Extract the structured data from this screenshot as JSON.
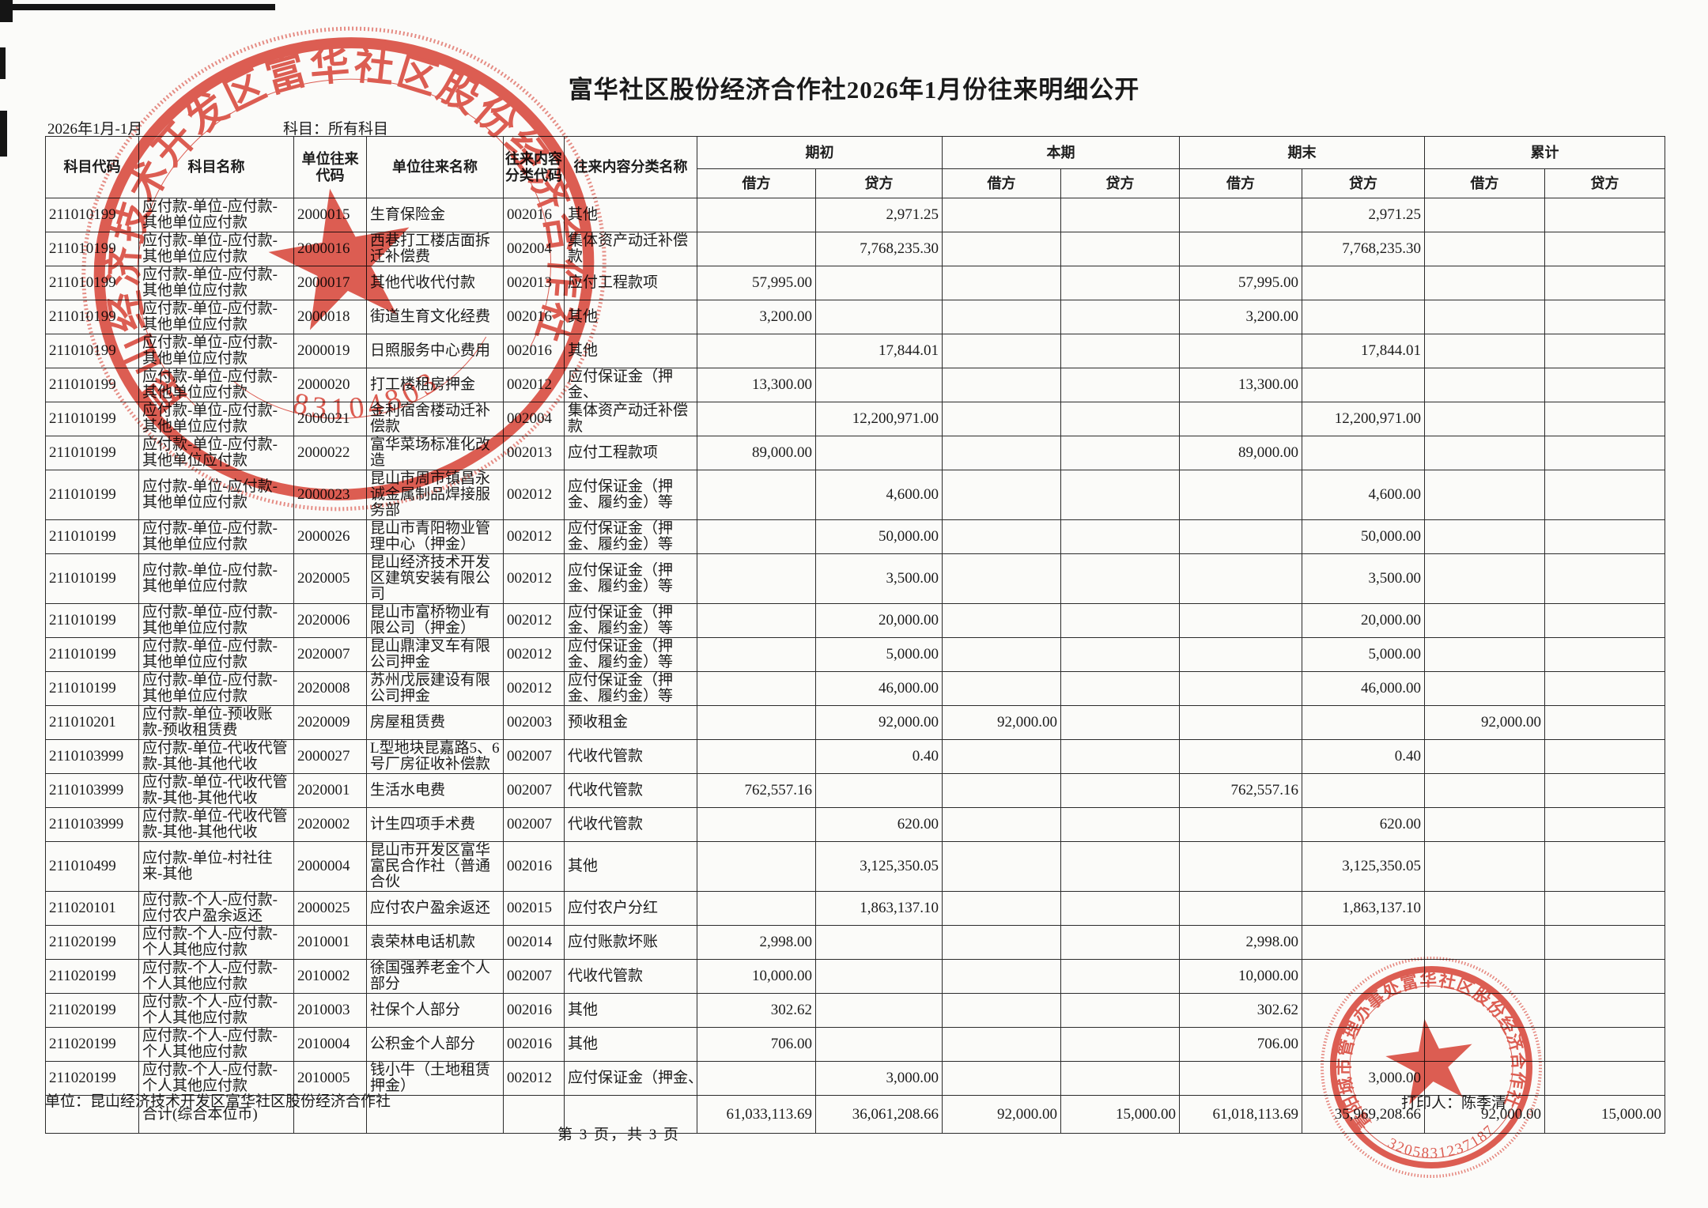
{
  "title": "富华社区股份经济合作社2026年1月份往来明细公开",
  "meta": {
    "period": "2026年1月-1月",
    "subject_filter": "科目：所有科目"
  },
  "table": {
    "headers": {
      "subject_code": "科目代码",
      "subject_name": "科目名称",
      "unit_code": "单位往来代码",
      "unit_name": "单位往来名称",
      "class_code": "往来内容分类代码",
      "class_name": "往来内容分类名称",
      "beginning": "期初",
      "current": "本期",
      "ending": "期末",
      "cumulative": "累计",
      "debit": "借方",
      "credit": "贷方"
    },
    "rows": [
      [
        "211010199",
        "应付款-单位-应付款-其他单位应付款",
        "2000015",
        "生育保险金",
        "002016",
        "其他",
        "",
        "2,971.25",
        "",
        "",
        "",
        "2,971.25",
        "",
        ""
      ],
      [
        "211010199",
        "应付款-单位-应付款-其他单位应付款",
        "2000016",
        "西巷打工楼店面拆迁补偿费",
        "002004",
        "集体资产动迁补偿款",
        "",
        "7,768,235.30",
        "",
        "",
        "",
        "7,768,235.30",
        "",
        ""
      ],
      [
        "211010199",
        "应付款-单位-应付款-其他单位应付款",
        "2000017",
        "其他代收代付款",
        "002013",
        "应付工程款项",
        "57,995.00",
        "",
        "",
        "",
        "57,995.00",
        "",
        "",
        ""
      ],
      [
        "211010199",
        "应付款-单位-应付款-其他单位应付款",
        "2000018",
        "街道生育文化经费",
        "002016",
        "其他",
        "3,200.00",
        "",
        "",
        "",
        "3,200.00",
        "",
        "",
        ""
      ],
      [
        "211010199",
        "应付款-单位-应付款-其他单位应付款",
        "2000019",
        "日照服务中心费用",
        "002016",
        "其他",
        "",
        "17,844.01",
        "",
        "",
        "",
        "17,844.01",
        "",
        ""
      ],
      [
        "211010199",
        "应付款-单位-应付款-其他单位应付款",
        "2000020",
        "打工楼租房押金",
        "002012",
        "应付保证金（押金、",
        "13,300.00",
        "",
        "",
        "",
        "13,300.00",
        "",
        "",
        ""
      ],
      [
        "211010199",
        "应付款-单位-应付款-其他单位应付款",
        "2000021",
        "金利宿舍楼动迁补偿款",
        "002004",
        "集体资产动迁补偿款",
        "",
        "12,200,971.00",
        "",
        "",
        "",
        "12,200,971.00",
        "",
        ""
      ],
      [
        "211010199",
        "应付款-单位-应付款-其他单位应付款",
        "2000022",
        "富华菜场标准化改造",
        "002013",
        "应付工程款项",
        "89,000.00",
        "",
        "",
        "",
        "89,000.00",
        "",
        "",
        ""
      ],
      [
        "211010199",
        "应付款-单位-应付款-其他单位应付款",
        "2000023",
        "昆山市周市镇昌永诚金属制品焊接服务部",
        "002012",
        "应付保证金（押金、履约金）等",
        "",
        "4,600.00",
        "",
        "",
        "",
        "4,600.00",
        "",
        ""
      ],
      [
        "211010199",
        "应付款-单位-应付款-其他单位应付款",
        "2000026",
        "昆山市青阳物业管理中心（押金）",
        "002012",
        "应付保证金（押金、履约金）等",
        "",
        "50,000.00",
        "",
        "",
        "",
        "50,000.00",
        "",
        ""
      ],
      [
        "211010199",
        "应付款-单位-应付款-其他单位应付款",
        "2020005",
        "昆山经济技术开发区建筑安装有限公司",
        "002012",
        "应付保证金（押金、履约金）等",
        "",
        "3,500.00",
        "",
        "",
        "",
        "3,500.00",
        "",
        ""
      ],
      [
        "211010199",
        "应付款-单位-应付款-其他单位应付款",
        "2020006",
        "昆山市富桥物业有限公司（押金）",
        "002012",
        "应付保证金（押金、履约金）等",
        "",
        "20,000.00",
        "",
        "",
        "",
        "20,000.00",
        "",
        ""
      ],
      [
        "211010199",
        "应付款-单位-应付款-其他单位应付款",
        "2020007",
        "昆山鼎津叉车有限公司押金",
        "002012",
        "应付保证金（押金、履约金）等",
        "",
        "5,000.00",
        "",
        "",
        "",
        "5,000.00",
        "",
        ""
      ],
      [
        "211010199",
        "应付款-单位-应付款-其他单位应付款",
        "2020008",
        "苏州戊辰建设有限公司押金",
        "002012",
        "应付保证金（押金、履约金）等",
        "",
        "46,000.00",
        "",
        "",
        "",
        "46,000.00",
        "",
        ""
      ],
      [
        "211010201",
        "应付款-单位-预收账款-预收租赁费",
        "2020009",
        "房屋租赁费",
        "002003",
        "预收租金",
        "",
        "92,000.00",
        "92,000.00",
        "",
        "",
        "",
        "92,000.00",
        ""
      ],
      [
        "2110103999",
        "应付款-单位-代收代管款-其他-其他代收",
        "2000027",
        "L型地块昆嘉路5、6号厂房征收补偿款",
        "002007",
        "代收代管款",
        "",
        "0.40",
        "",
        "",
        "",
        "0.40",
        "",
        ""
      ],
      [
        "2110103999",
        "应付款-单位-代收代管款-其他-其他代收",
        "2020001",
        "生活水电费",
        "002007",
        "代收代管款",
        "762,557.16",
        "",
        "",
        "",
        "762,557.16",
        "",
        "",
        ""
      ],
      [
        "2110103999",
        "应付款-单位-代收代管款-其他-其他代收",
        "2020002",
        "计生四项手术费",
        "002007",
        "代收代管款",
        "",
        "620.00",
        "",
        "",
        "",
        "620.00",
        "",
        ""
      ],
      [
        "211010499",
        "应付款-单位-村社往来-其他",
        "2000004",
        "昆山市开发区富华富民合作社（普通合伙",
        "002016",
        "其他",
        "",
        "3,125,350.05",
        "",
        "",
        "",
        "3,125,350.05",
        "",
        ""
      ],
      [
        "211020101",
        "应付款-个人-应付款-应付农户盈余返还",
        "2000025",
        "应付农户盈余返还",
        "002015",
        "应付农户分红",
        "",
        "1,863,137.10",
        "",
        "",
        "",
        "1,863,137.10",
        "",
        ""
      ],
      [
        "211020199",
        "应付款-个人-应付款-个人其他应付款",
        "2010001",
        "袁荣林电话机款",
        "002014",
        "应付账款坏账",
        "2,998.00",
        "",
        "",
        "",
        "2,998.00",
        "",
        "",
        ""
      ],
      [
        "211020199",
        "应付款-个人-应付款-个人其他应付款",
        "2010002",
        "徐国强养老金个人部分",
        "002007",
        "代收代管款",
        "10,000.00",
        "",
        "",
        "",
        "10,000.00",
        "",
        "",
        ""
      ],
      [
        "211020199",
        "应付款-个人-应付款-个人其他应付款",
        "2010003",
        "社保个人部分",
        "002016",
        "其他",
        "302.62",
        "",
        "",
        "",
        "302.62",
        "",
        "",
        ""
      ],
      [
        "211020199",
        "应付款-个人-应付款-个人其他应付款",
        "2010004",
        "公积金个人部分",
        "002016",
        "其他",
        "706.00",
        "",
        "",
        "",
        "706.00",
        "",
        "",
        ""
      ],
      [
        "211020199",
        "应付款-个人-应付款-个人其他应付款",
        "2010005",
        "钱小牛（土地租赁押金）",
        "002012",
        "应付保证金（押金、履约金）等",
        "",
        "3,000.00",
        "",
        "",
        "",
        "3,000.00",
        "",
        ""
      ]
    ],
    "total_row": [
      "",
      "合计(综合本位币)",
      "",
      "",
      "",
      "",
      "61,033,113.69",
      "36,061,208.66",
      "92,000.00",
      "15,000.00",
      "61,018,113.69",
      "35,969,208.66",
      "92,000.00",
      "15,000.00"
    ]
  },
  "footer": {
    "unit_line": "单位：昆山经济技术开发区富华社区股份经济合作社",
    "page_line": "第 3 页，共 3 页",
    "printer_line": "打印人：陈季清"
  },
  "stamps": {
    "top_left": {
      "ring_text": "昆山经济技术开发区富华社区股份经济合作社",
      "number": "83104803"
    },
    "bottom_right": {
      "ring_text": "青阳城市管理办事处富华社区股份经济合作社",
      "number": "3205831237187"
    },
    "color": "#d93a2e"
  }
}
